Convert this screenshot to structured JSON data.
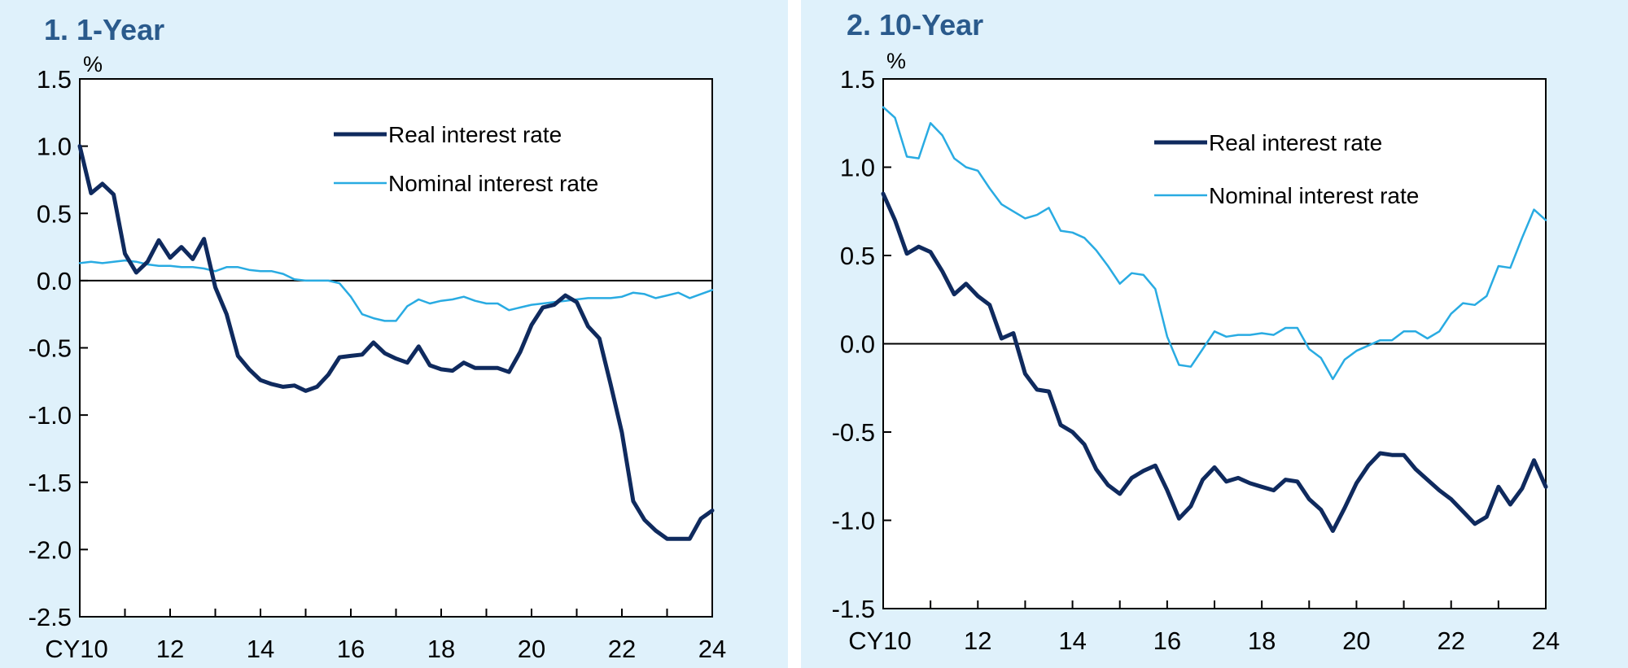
{
  "colors": {
    "panel_bg": "#dff1fb",
    "real": "#0f2a5e",
    "nominal": "#29abe2"
  },
  "chart_data": [
    {
      "type": "line",
      "title": "1. 1-Year",
      "ylabel": "%",
      "x_start_label": "CY10",
      "x_tick_labels": [
        "CY10",
        "12",
        "14",
        "16",
        "18",
        "20",
        "22",
        "24"
      ],
      "y_tick_labels": [
        "1.5",
        "1.0",
        "0.5",
        "0.0",
        "-0.5",
        "-1.0",
        "-1.5",
        "-2.0",
        "-2.5"
      ],
      "xlim": [
        2010,
        2024
      ],
      "ylim": [
        -2.5,
        1.5
      ],
      "zero_line": true,
      "legend_position": "top-right",
      "series": [
        {
          "name": "Real interest rate",
          "x": [
            2010,
            2010.25,
            2010.5,
            2010.75,
            2011,
            2011.25,
            2011.5,
            2011.75,
            2012,
            2012.25,
            2012.5,
            2012.75,
            2013,
            2013.25,
            2013.5,
            2013.75,
            2014,
            2014.25,
            2014.5,
            2014.75,
            2015,
            2015.25,
            2015.5,
            2015.75,
            2016,
            2016.25,
            2016.5,
            2016.75,
            2017,
            2017.25,
            2017.5,
            2017.75,
            2018,
            2018.25,
            2018.5,
            2018.75,
            2019,
            2019.25,
            2019.5,
            2019.75,
            2020,
            2020.25,
            2020.5,
            2020.75,
            2021,
            2021.25,
            2021.5,
            2021.75,
            2022,
            2022.25,
            2022.5,
            2022.75,
            2023,
            2023.25,
            2023.5,
            2023.75,
            2024
          ],
          "y": [
            1.0,
            0.65,
            0.72,
            0.64,
            0.2,
            0.06,
            0.14,
            0.3,
            0.17,
            0.25,
            0.16,
            0.31,
            -0.05,
            -0.25,
            -0.56,
            -0.66,
            -0.74,
            -0.77,
            -0.79,
            -0.78,
            -0.82,
            -0.79,
            -0.7,
            -0.57,
            -0.56,
            -0.55,
            -0.46,
            -0.54,
            -0.58,
            -0.61,
            -0.49,
            -0.63,
            -0.66,
            -0.67,
            -0.61,
            -0.65,
            -0.65,
            -0.65,
            -0.68,
            -0.53,
            -0.33,
            -0.2,
            -0.18,
            -0.11,
            -0.16,
            -0.34,
            -0.43,
            -0.77,
            -1.13,
            -1.64,
            -1.78,
            -1.86,
            -1.92,
            -1.92,
            -1.92,
            -1.77,
            -1.71
          ]
        },
        {
          "name": "Nominal interest rate",
          "x": [
            2010,
            2010.25,
            2010.5,
            2010.75,
            2011,
            2011.25,
            2011.5,
            2011.75,
            2012,
            2012.25,
            2012.5,
            2012.75,
            2013,
            2013.25,
            2013.5,
            2013.75,
            2014,
            2014.25,
            2014.5,
            2014.75,
            2015,
            2015.25,
            2015.5,
            2015.75,
            2016,
            2016.25,
            2016.5,
            2016.75,
            2017,
            2017.25,
            2017.5,
            2017.75,
            2018,
            2018.25,
            2018.5,
            2018.75,
            2019,
            2019.25,
            2019.5,
            2019.75,
            2020,
            2020.25,
            2020.5,
            2020.75,
            2021,
            2021.25,
            2021.5,
            2021.75,
            2022,
            2022.25,
            2022.5,
            2022.75,
            2023,
            2023.25,
            2023.5,
            2023.75,
            2024
          ],
          "y": [
            0.13,
            0.14,
            0.13,
            0.14,
            0.15,
            0.14,
            0.12,
            0.11,
            0.11,
            0.1,
            0.1,
            0.09,
            0.07,
            0.1,
            0.1,
            0.08,
            0.07,
            0.07,
            0.05,
            0.01,
            0.0,
            0.0,
            0.0,
            -0.02,
            -0.12,
            -0.25,
            -0.28,
            -0.3,
            -0.3,
            -0.19,
            -0.14,
            -0.17,
            -0.15,
            -0.14,
            -0.12,
            -0.15,
            -0.17,
            -0.17,
            -0.22,
            -0.2,
            -0.18,
            -0.17,
            -0.16,
            -0.15,
            -0.14,
            -0.13,
            -0.13,
            -0.13,
            -0.12,
            -0.09,
            -0.1,
            -0.13,
            -0.11,
            -0.09,
            -0.13,
            -0.1,
            -0.07
          ]
        }
      ]
    },
    {
      "type": "line",
      "title": "2. 10-Year",
      "ylabel": "%",
      "x_start_label": "CY10",
      "x_tick_labels": [
        "CY10",
        "12",
        "14",
        "16",
        "18",
        "20",
        "22",
        "24"
      ],
      "y_tick_labels": [
        "1.5",
        "1.0",
        "0.5",
        "0.0",
        "-0.5",
        "-1.0",
        "-1.5"
      ],
      "xlim": [
        2010,
        2024
      ],
      "ylim": [
        -1.5,
        1.5
      ],
      "zero_line": true,
      "legend_position": "top-right",
      "series": [
        {
          "name": "Real interest rate",
          "x": [
            2010,
            2010.25,
            2010.5,
            2010.75,
            2011,
            2011.25,
            2011.5,
            2011.75,
            2012,
            2012.25,
            2012.5,
            2012.75,
            2013,
            2013.25,
            2013.5,
            2013.75,
            2014,
            2014.25,
            2014.5,
            2014.75,
            2015,
            2015.25,
            2015.5,
            2015.75,
            2016,
            2016.25,
            2016.5,
            2016.75,
            2017,
            2017.25,
            2017.5,
            2017.75,
            2018,
            2018.25,
            2018.5,
            2018.75,
            2019,
            2019.25,
            2019.5,
            2019.75,
            2020,
            2020.25,
            2020.5,
            2020.75,
            2021,
            2021.25,
            2021.5,
            2021.75,
            2022,
            2022.25,
            2022.5,
            2022.75,
            2023,
            2023.25,
            2023.5,
            2023.75,
            2024
          ],
          "y": [
            0.85,
            0.7,
            0.51,
            0.55,
            0.52,
            0.41,
            0.28,
            0.34,
            0.27,
            0.22,
            0.03,
            0.06,
            -0.17,
            -0.26,
            -0.27,
            -0.46,
            -0.5,
            -0.57,
            -0.71,
            -0.8,
            -0.85,
            -0.76,
            -0.72,
            -0.69,
            -0.83,
            -0.99,
            -0.92,
            -0.77,
            -0.7,
            -0.78,
            -0.76,
            -0.79,
            -0.81,
            -0.83,
            -0.77,
            -0.78,
            -0.88,
            -0.94,
            -1.06,
            -0.93,
            -0.79,
            -0.69,
            -0.62,
            -0.63,
            -0.63,
            -0.71,
            -0.77,
            -0.83,
            -0.88,
            -0.95,
            -1.02,
            -0.98,
            -0.81,
            -0.91,
            -0.82,
            -0.66,
            -0.81
          ]
        },
        {
          "name": "Nominal interest rate",
          "x": [
            2010,
            2010.25,
            2010.5,
            2010.75,
            2011,
            2011.25,
            2011.5,
            2011.75,
            2012,
            2012.25,
            2012.5,
            2012.75,
            2013,
            2013.25,
            2013.5,
            2013.75,
            2014,
            2014.25,
            2014.5,
            2014.75,
            2015,
            2015.25,
            2015.5,
            2015.75,
            2016,
            2016.25,
            2016.5,
            2016.75,
            2017,
            2017.25,
            2017.5,
            2017.75,
            2018,
            2018.25,
            2018.5,
            2018.75,
            2019,
            2019.25,
            2019.5,
            2019.75,
            2020,
            2020.25,
            2020.5,
            2020.75,
            2021,
            2021.25,
            2021.5,
            2021.75,
            2022,
            2022.25,
            2022.5,
            2022.75,
            2023,
            2023.25,
            2023.5,
            2023.75,
            2024
          ],
          "y": [
            1.34,
            1.28,
            1.06,
            1.05,
            1.25,
            1.18,
            1.05,
            1.0,
            0.98,
            0.88,
            0.79,
            0.75,
            0.71,
            0.73,
            0.77,
            0.64,
            0.63,
            0.6,
            0.53,
            0.44,
            0.34,
            0.4,
            0.39,
            0.31,
            0.04,
            -0.12,
            -0.13,
            -0.03,
            0.07,
            0.04,
            0.05,
            0.05,
            0.06,
            0.05,
            0.09,
            0.09,
            -0.03,
            -0.08,
            -0.2,
            -0.09,
            -0.04,
            -0.01,
            0.02,
            0.02,
            0.07,
            0.07,
            0.03,
            0.07,
            0.17,
            0.23,
            0.22,
            0.27,
            0.44,
            0.43,
            0.6,
            0.76,
            0.7
          ]
        }
      ]
    }
  ]
}
